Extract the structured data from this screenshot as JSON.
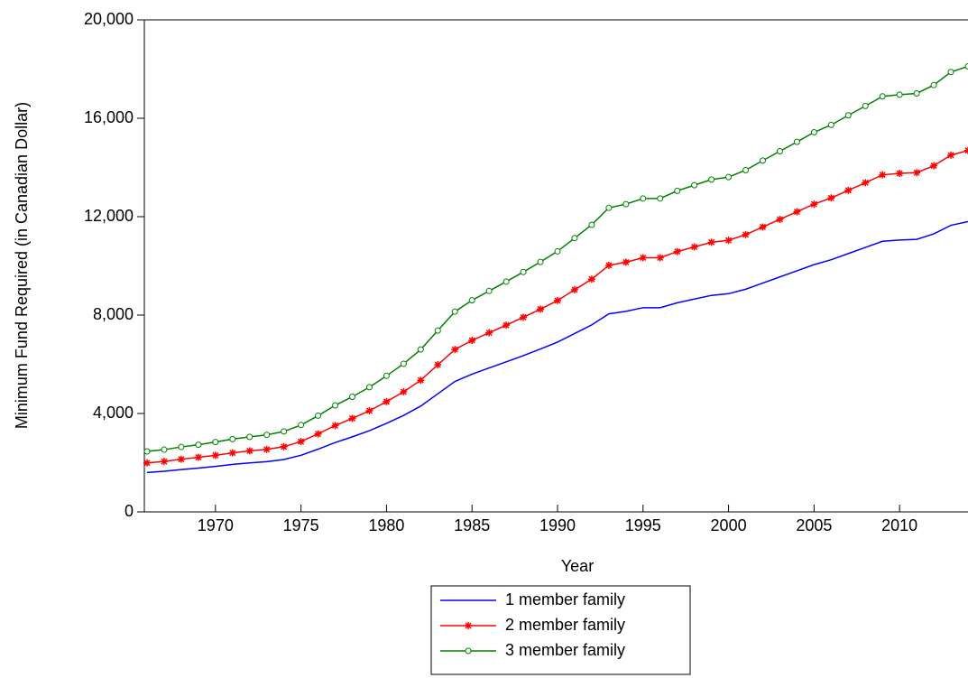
{
  "chart_data": {
    "type": "line",
    "xlabel": "Year",
    "ylabel": "Minimum Fund Required (in Canadian Dollar)",
    "x": [
      1966,
      1967,
      1968,
      1969,
      1970,
      1971,
      1972,
      1973,
      1974,
      1975,
      1976,
      1977,
      1978,
      1979,
      1980,
      1981,
      1982,
      1983,
      1984,
      1985,
      1986,
      1987,
      1988,
      1989,
      1990,
      1991,
      1992,
      1993,
      1994,
      1995,
      1996,
      1997,
      1998,
      1999,
      2000,
      2001,
      2002,
      2003,
      2004,
      2005,
      2006,
      2007,
      2008,
      2009,
      2010,
      2011,
      2012,
      2013,
      2014
    ],
    "series": [
      {
        "name": "1 member family",
        "color": "#0000ff",
        "marker": "none",
        "values": [
          1600,
          1650,
          1720,
          1780,
          1850,
          1930,
          1990,
          2040,
          2130,
          2300,
          2550,
          2820,
          3050,
          3300,
          3600,
          3920,
          4300,
          4800,
          5300,
          5600,
          5850,
          6100,
          6350,
          6620,
          6900,
          7250,
          7600,
          8050,
          8150,
          8300,
          8300,
          8500,
          8650,
          8800,
          8870,
          9050,
          9300,
          9550,
          9800,
          10050,
          10250,
          10500,
          10750,
          11000,
          11050,
          11080,
          11300,
          11650,
          11800
        ]
      },
      {
        "name": "2 member family",
        "color": "#ff0000",
        "marker": "asterisk",
        "values": [
          1990,
          2050,
          2140,
          2220,
          2300,
          2400,
          2480,
          2540,
          2650,
          2860,
          3170,
          3510,
          3800,
          4110,
          4480,
          4880,
          5350,
          5980,
          6600,
          6970,
          7280,
          7590,
          7910,
          8240,
          8590,
          9030,
          9460,
          10020,
          10150,
          10330,
          10330,
          10580,
          10770,
          10960,
          11040,
          11270,
          11580,
          11890,
          12200,
          12510,
          12760,
          13070,
          13380,
          13700,
          13760,
          13790,
          14070,
          14500,
          14690
        ]
      },
      {
        "name": "3 member family",
        "color": "#008000",
        "marker": "circle",
        "values": [
          2460,
          2530,
          2640,
          2730,
          2840,
          2960,
          3050,
          3130,
          3270,
          3530,
          3910,
          4330,
          4680,
          5070,
          5530,
          6020,
          6600,
          7370,
          8140,
          8600,
          8980,
          9360,
          9750,
          10160,
          10590,
          11130,
          11670,
          12360,
          12510,
          12740,
          12740,
          13050,
          13280,
          13510,
          13610,
          13890,
          14280,
          14660,
          15040,
          15430,
          15730,
          16120,
          16500,
          16890,
          16960,
          17010,
          17350,
          17880,
          18110
        ]
      }
    ],
    "xlim": [
      1966,
      2014
    ],
    "xticks": [
      1970,
      1975,
      1980,
      1985,
      1990,
      1995,
      2000,
      2005,
      2010
    ],
    "ylim": [
      0,
      20000
    ],
    "yticks": [
      0,
      {
        "value": 4000,
        "label": "4,000"
      },
      {
        "value": 8000,
        "label": "8,000"
      },
      {
        "value": 12000,
        "label": "12,000"
      },
      {
        "value": 16000,
        "label": "16,000"
      },
      {
        "value": 20000,
        "label": "20,000"
      }
    ],
    "legend": "bottom"
  }
}
